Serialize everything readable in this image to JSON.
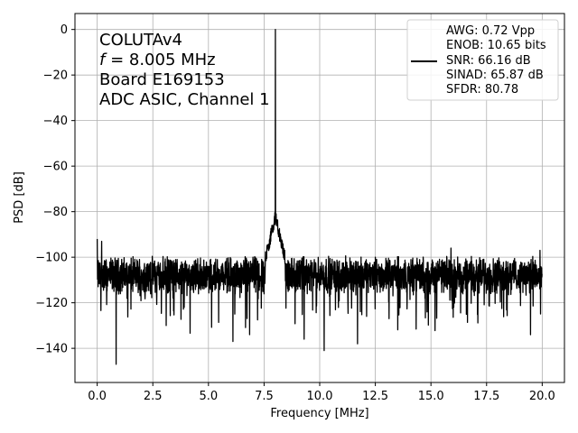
{
  "chart_data": {
    "type": "line",
    "xlabel": "Frequency [MHz]",
    "ylabel": "PSD [dB]",
    "xlim": [
      -1.0,
      21.0
    ],
    "ylim": [
      -155,
      7
    ],
    "xticks": [
      0.0,
      2.5,
      5.0,
      7.5,
      10.0,
      12.5,
      15.0,
      17.5,
      20.0
    ],
    "xtick_labels": [
      "0.0",
      "2.5",
      "5.0",
      "7.5",
      "10.0",
      "12.5",
      "15.0",
      "17.5",
      "20.0"
    ],
    "yticks": [
      0,
      -20,
      -40,
      -60,
      -80,
      -100,
      -120,
      -140
    ],
    "ytick_labels": [
      "0",
      "−20",
      "−40",
      "−60",
      "−80",
      "−100",
      "−120",
      "−140"
    ],
    "grid": true,
    "legend_placement": "top-right",
    "line_color": "#000000",
    "annotations": [
      "COLUTAv4",
      "f = 8.005 MHz",
      "Board E169153",
      "ADC ASIC, Channel 1"
    ],
    "legend_lines": [
      "AWG: 0.72 Vpp",
      "ENOB: 10.65 bits",
      "SNR: 66.16 dB",
      "SINAD: 65.87 dB",
      "SFDR: 80.78"
    ],
    "series": [
      {
        "x_start": 0.0,
        "x_end": 20.0,
        "noise_floor_db": -108,
        "peak_x": 8.005,
        "peak_db": 0,
        "spur_x": [
          0.0,
          0.2,
          0.85,
          3.1,
          6.1,
          6.85,
          9.3,
          10.2,
          11.7,
          15.9,
          19.9
        ],
        "spur_db": [
          -92,
          -93,
          -147,
          -130,
          -137,
          -134,
          -136,
          -141,
          -138,
          -96,
          -97
        ]
      }
    ]
  }
}
